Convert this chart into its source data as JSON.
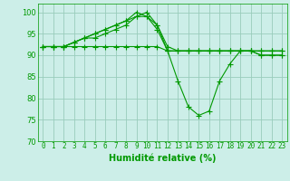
{
  "xlabel": "Humidité relative (%)",
  "xlim": [
    -0.5,
    23.5
  ],
  "ylim": [
    70,
    102
  ],
  "yticks": [
    70,
    75,
    80,
    85,
    90,
    95,
    100
  ],
  "xticks": [
    0,
    1,
    2,
    3,
    4,
    5,
    6,
    7,
    8,
    9,
    10,
    11,
    12,
    13,
    14,
    15,
    16,
    17,
    18,
    19,
    20,
    21,
    22,
    23
  ],
  "bg_color": "#cceee8",
  "grid_color": "#99ccbb",
  "line_color": "#009900",
  "marker": "+",
  "series": [
    [
      92,
      92,
      92,
      93,
      94,
      95,
      96,
      97,
      98,
      100,
      99,
      97,
      91,
      84,
      78,
      76,
      77,
      84,
      88,
      91,
      91,
      90,
      90,
      90
    ],
    [
      92,
      92,
      92,
      93,
      94,
      95,
      96,
      97,
      98,
      99,
      100,
      97,
      92,
      91,
      91,
      91,
      91,
      91,
      91,
      91,
      91,
      91,
      91,
      91
    ],
    [
      92,
      92,
      92,
      93,
      94,
      94,
      95,
      96,
      97,
      99,
      99,
      96,
      91,
      91,
      91,
      91,
      91,
      91,
      91,
      91,
      91,
      91,
      91,
      91
    ],
    [
      92,
      92,
      92,
      92,
      92,
      92,
      92,
      92,
      92,
      92,
      92,
      92,
      91,
      91,
      91,
      91,
      91,
      91,
      91,
      91,
      91,
      90,
      90,
      90
    ]
  ]
}
